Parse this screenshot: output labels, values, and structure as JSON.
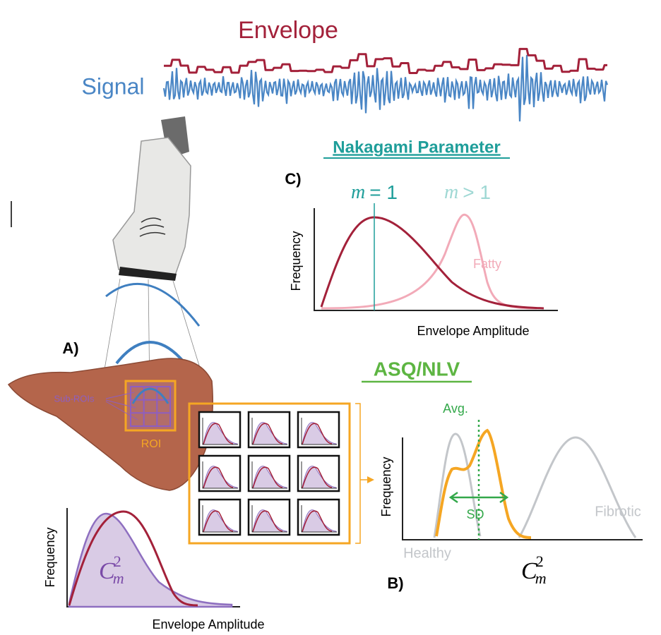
{
  "signal_panel": {
    "envelope_label": "Envelope",
    "signal_label": "Signal"
  },
  "panel_c": {
    "label": "C)",
    "title": "Nakagami Parameter",
    "m_equal": {
      "symbol": "m",
      "relation": "= 1"
    },
    "m_greater": {
      "symbol": "m",
      "relation": "> 1"
    },
    "y_axis": "Frequency",
    "x_axis": "Envelope Amplitude",
    "fatty_label": "Fatty"
  },
  "panel_a": {
    "label": "A)",
    "sub_roi_label": "Sub-ROIs",
    "roi_label": "ROI",
    "histogram": {
      "y_axis": "Frequency",
      "x_axis": "Envelope Amplitude",
      "symbol": {
        "base": "C",
        "subscript": "m",
        "superscript": "2"
      }
    }
  },
  "panel_b": {
    "label": "B)",
    "title": "ASQ/NLV",
    "avg_label": "Avg.",
    "sd_label": "SD",
    "y_axis": "Frequency",
    "healthy_label": "Healthy",
    "fibrotic_label": "Fibrotic",
    "x_symbol": {
      "base": "C",
      "subscript": "m",
      "superscript": "2"
    }
  }
}
